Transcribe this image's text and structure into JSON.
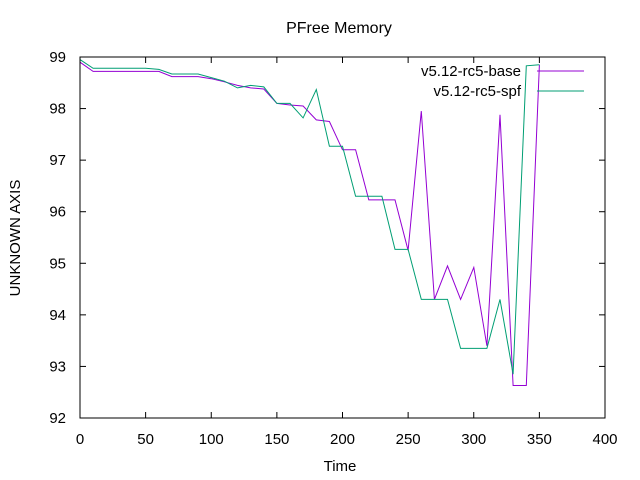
{
  "chart_data": {
    "type": "line",
    "title": "PFree Memory",
    "xlabel": "Time",
    "ylabel": "UNKNOWN AXIS",
    "xlim": [
      0,
      400
    ],
    "ylim": [
      92,
      99
    ],
    "xticks": [
      0,
      50,
      100,
      150,
      200,
      250,
      300,
      350,
      400
    ],
    "yticks": [
      92,
      93,
      94,
      95,
      96,
      97,
      98,
      99
    ],
    "grid": false,
    "legend": "top-right",
    "series": [
      {
        "name": "v5.12-rc5-base",
        "color": "#9400d3",
        "x": [
          0,
          10,
          20,
          30,
          40,
          50,
          60,
          70,
          80,
          90,
          100,
          110,
          120,
          130,
          140,
          150,
          160,
          170,
          180,
          190,
          200,
          210,
          220,
          230,
          240,
          250,
          260,
          270,
          280,
          290,
          300,
          310,
          320,
          330,
          340,
          350
        ],
        "y": [
          98.9,
          98.72,
          98.72,
          98.72,
          98.72,
          98.72,
          98.72,
          98.62,
          98.62,
          98.62,
          98.58,
          98.52,
          98.45,
          98.4,
          98.38,
          98.1,
          98.07,
          98.05,
          97.78,
          97.75,
          97.2,
          97.2,
          96.23,
          96.23,
          96.23,
          95.25,
          97.95,
          94.3,
          94.95,
          94.3,
          94.92,
          93.4,
          97.88,
          92.63,
          92.63,
          98.85
        ]
      },
      {
        "name": "v5.12-rc5-spf",
        "color": "#009e73",
        "x": [
          0,
          10,
          20,
          30,
          40,
          50,
          60,
          70,
          80,
          90,
          100,
          110,
          120,
          130,
          140,
          150,
          160,
          170,
          180,
          190,
          200,
          210,
          220,
          230,
          240,
          250,
          260,
          270,
          280,
          290,
          300,
          310,
          320,
          330,
          340,
          350
        ],
        "y": [
          98.95,
          98.78,
          98.78,
          98.78,
          98.78,
          98.78,
          98.76,
          98.67,
          98.67,
          98.67,
          98.6,
          98.53,
          98.4,
          98.45,
          98.42,
          98.1,
          98.1,
          97.82,
          98.37,
          97.27,
          97.27,
          96.3,
          96.3,
          96.3,
          95.27,
          95.27,
          94.3,
          94.3,
          94.3,
          93.35,
          93.35,
          93.35,
          94.3,
          92.85,
          98.83,
          98.85
        ]
      }
    ]
  }
}
